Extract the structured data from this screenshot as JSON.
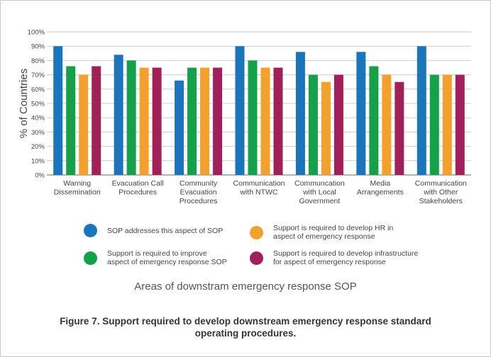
{
  "colors": {
    "series_0": "#1a75bb",
    "series_1": "#14a14a",
    "series_2": "#f4a02c",
    "series_3": "#a2205a",
    "grid": "#cccccc",
    "axis": "#666666"
  },
  "chart_data": {
    "type": "bar",
    "xlabel": "Areas of downstram emergency response SOP",
    "ylabel": "% of Countries",
    "ylim": [
      0,
      100
    ],
    "yticks": [
      "0%",
      "10%",
      "20%",
      "30%",
      "40%",
      "50%",
      "60%",
      "70%",
      "80%",
      "90%",
      "100%"
    ],
    "grid": true,
    "legend_placement": "bottom",
    "categories": [
      "Warning\nDissemination",
      "Evacuation Call\nProcedures",
      "Community\nEvacuation\nProcedures",
      "Communication\nwith NTWC",
      "Communcation\nwith Local\nGovernment",
      "Media\nArrangements",
      "Communication\nwith Other\nStakeholders"
    ],
    "series": [
      {
        "name": "SOP addresses this aspect of SOP",
        "values": [
          90,
          84,
          66,
          90,
          86,
          86,
          90
        ]
      },
      {
        "name": "Support is required to improve\naspect of emergency response SOP",
        "values": [
          76,
          80,
          75,
          80,
          70,
          76,
          70
        ]
      },
      {
        "name": "Support is required to develop HR in\naspect of emergency response",
        "values": [
          70,
          75,
          75,
          75,
          65,
          70,
          70
        ]
      },
      {
        "name": "Support is required to develop infrastructure\nfor aspect of emergency response",
        "values": [
          76,
          75,
          75,
          75,
          70,
          65,
          70
        ]
      }
    ]
  },
  "caption": "Figure 7. Support required to develop downstream emergency response standard operating procedures."
}
